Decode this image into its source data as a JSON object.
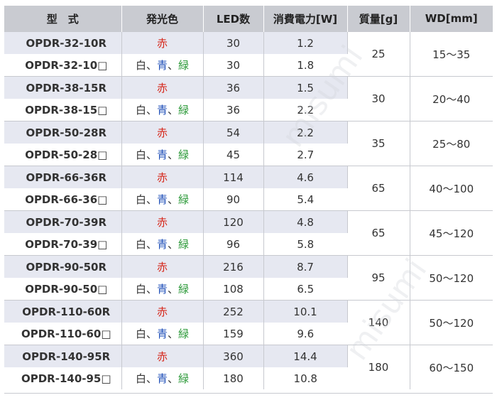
{
  "headers": [
    "型　式",
    "発光色",
    "LED数",
    "消費電力[W]",
    "質量[g]",
    "WD[mm]"
  ],
  "colors": {
    "red": "赤",
    "white": "白",
    "blue": "青",
    "green": "緑",
    "sep": "、"
  },
  "groups": [
    {
      "mass": "25",
      "wd": "15～35",
      "rows": [
        {
          "model": "OPDR-32-10R",
          "color": "red",
          "led": "30",
          "power": "1.2"
        },
        {
          "model": "OPDR-32-10□",
          "color": "multi",
          "led": "30",
          "power": "1.8"
        }
      ]
    },
    {
      "mass": "30",
      "wd": "20～40",
      "rows": [
        {
          "model": "OPDR-38-15R",
          "color": "red",
          "led": "36",
          "power": "1.5"
        },
        {
          "model": "OPDR-38-15□",
          "color": "multi",
          "led": "36",
          "power": "2.2"
        }
      ]
    },
    {
      "mass": "35",
      "wd": "25～80",
      "rows": [
        {
          "model": "OPDR-50-28R",
          "color": "red",
          "led": "54",
          "power": "2.2"
        },
        {
          "model": "OPDR-50-28□",
          "color": "multi",
          "led": "45",
          "power": "2.7"
        }
      ]
    },
    {
      "mass": "65",
      "wd": "40～100",
      "rows": [
        {
          "model": "OPDR-66-36R",
          "color": "red",
          "led": "114",
          "power": "4.6"
        },
        {
          "model": "OPDR-66-36□",
          "color": "multi",
          "led": "90",
          "power": "5.4"
        }
      ]
    },
    {
      "mass": "65",
      "wd": "45～120",
      "rows": [
        {
          "model": "OPDR-70-39R",
          "color": "red",
          "led": "120",
          "power": "4.8"
        },
        {
          "model": "OPDR-70-39□",
          "color": "multi",
          "led": "96",
          "power": "5.8"
        }
      ]
    },
    {
      "mass": "95",
      "wd": "50～120",
      "rows": [
        {
          "model": "OPDR-90-50R",
          "color": "red",
          "led": "216",
          "power": "8.7"
        },
        {
          "model": "OPDR-90-50□",
          "color": "multi",
          "led": "108",
          "power": "6.5"
        }
      ]
    },
    {
      "mass": "140",
      "wd": "50～120",
      "rows": [
        {
          "model": "OPDR-110-60R",
          "color": "red",
          "led": "252",
          "power": "10.1"
        },
        {
          "model": "OPDR-110-60□",
          "color": "multi",
          "led": "159",
          "power": "9.6"
        }
      ]
    },
    {
      "mass": "180",
      "wd": "60～150",
      "rows": [
        {
          "model": "OPDR-140-95R",
          "color": "red",
          "led": "360",
          "power": "14.4"
        },
        {
          "model": "OPDR-140-95□",
          "color": "multi",
          "led": "180",
          "power": "10.8"
        }
      ]
    }
  ],
  "watermark": "misumi"
}
